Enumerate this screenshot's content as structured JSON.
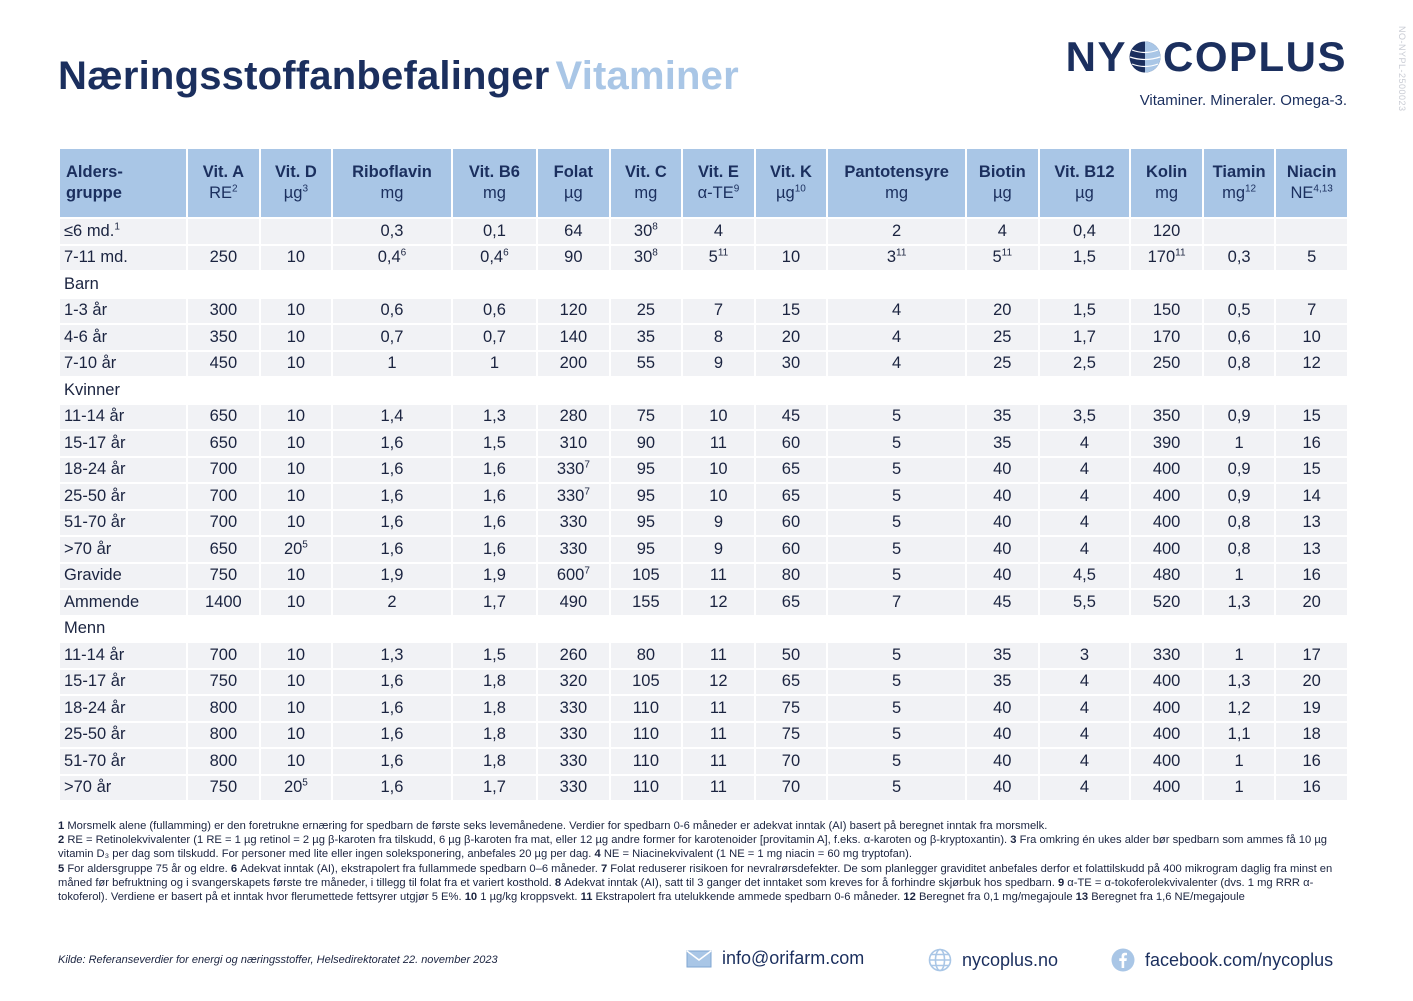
{
  "title": {
    "main": "Næringsstoffanbefalinger",
    "accent": "Vitaminer"
  },
  "brand": {
    "logo": "NYCOPLUS",
    "tagline": "Vitaminer. Mineraler. Omega-3.",
    "doc_id": "NO-NYPL-2500023"
  },
  "colors": {
    "navy": "#1b2f5e",
    "header_blue": "#a9c6e6",
    "row_grey": "#f1f2f5"
  },
  "table": {
    "columns": [
      {
        "name": "Alders-",
        "name2": "gruppe",
        "unit": ""
      },
      {
        "name": "Vit. A",
        "unit": "RE",
        "sup": "2"
      },
      {
        "name": "Vit. D",
        "unit": "µg",
        "sup": "3"
      },
      {
        "name": "Riboflavin",
        "unit": "mg",
        "sup": ""
      },
      {
        "name": "Vit. B6",
        "unit": "mg",
        "sup": ""
      },
      {
        "name": "Folat",
        "unit": "µg",
        "sup": ""
      },
      {
        "name": "Vit. C",
        "unit": "mg",
        "sup": ""
      },
      {
        "name": "Vit. E",
        "unit": "α-TE",
        "sup": "9"
      },
      {
        "name": "Vit. K",
        "unit": "µg",
        "sup": "10"
      },
      {
        "name": "Pantotensyre",
        "unit": "mg",
        "sup": ""
      },
      {
        "name": "Biotin",
        "unit": "µg",
        "sup": ""
      },
      {
        "name": "Vit. B12",
        "unit": "µg",
        "sup": ""
      },
      {
        "name": "Kolin",
        "unit": "mg",
        "sup": ""
      },
      {
        "name": "Tiamin",
        "unit": "mg",
        "sup": "12"
      },
      {
        "name": "Niacin",
        "unit": "NE",
        "sup": "4,13"
      }
    ],
    "rows": [
      {
        "label": "≤6 md.",
        "label_sup": "1",
        "cells": [
          "",
          "",
          "0,3",
          "0,1",
          "64",
          "30^8",
          "4",
          "",
          "2",
          "4",
          "0,4",
          "120",
          "",
          ""
        ]
      },
      {
        "label": "7-11 md.",
        "cells": [
          "250",
          "10",
          "0,4^6",
          "0,4^6",
          "90",
          "30^8",
          "5^11",
          "10",
          "3^11",
          "5^11",
          "1,5",
          "170^11",
          "0,3",
          "5"
        ]
      },
      {
        "group": "Barn"
      },
      {
        "label": "1-3 år",
        "cells": [
          "300",
          "10",
          "0,6",
          "0,6",
          "120",
          "25",
          "7",
          "15",
          "4",
          "20",
          "1,5",
          "150",
          "0,5",
          "7"
        ]
      },
      {
        "label": "4-6 år",
        "cells": [
          "350",
          "10",
          "0,7",
          "0,7",
          "140",
          "35",
          "8",
          "20",
          "4",
          "25",
          "1,7",
          "170",
          "0,6",
          "10"
        ]
      },
      {
        "label": "7-10 år",
        "cells": [
          "450",
          "10",
          "1",
          "1",
          "200",
          "55",
          "9",
          "30",
          "4",
          "25",
          "2,5",
          "250",
          "0,8",
          "12"
        ]
      },
      {
        "group": "Kvinner"
      },
      {
        "label": "11-14 år",
        "cells": [
          "650",
          "10",
          "1,4",
          "1,3",
          "280",
          "75",
          "10",
          "45",
          "5",
          "35",
          "3,5",
          "350",
          "0,9",
          "15"
        ]
      },
      {
        "label": "15-17 år",
        "cells": [
          "650",
          "10",
          "1,6",
          "1,5",
          "310",
          "90",
          "11",
          "60",
          "5",
          "35",
          "4",
          "390",
          "1",
          "16"
        ]
      },
      {
        "label": "18-24 år",
        "cells": [
          "700",
          "10",
          "1,6",
          "1,6",
          "330^7",
          "95",
          "10",
          "65",
          "5",
          "40",
          "4",
          "400",
          "0,9",
          "15"
        ]
      },
      {
        "label": "25-50 år",
        "cells": [
          "700",
          "10",
          "1,6",
          "1,6",
          "330^7",
          "95",
          "10",
          "65",
          "5",
          "40",
          "4",
          "400",
          "0,9",
          "14"
        ]
      },
      {
        "label": "51-70 år",
        "cells": [
          "700",
          "10",
          "1,6",
          "1,6",
          "330",
          "95",
          "9",
          "60",
          "5",
          "40",
          "4",
          "400",
          "0,8",
          "13"
        ]
      },
      {
        "label": ">70 år",
        "cells": [
          "650",
          "20^5",
          "1,6",
          "1,6",
          "330",
          "95",
          "9",
          "60",
          "5",
          "40",
          "4",
          "400",
          "0,8",
          "13"
        ]
      },
      {
        "label": "Gravide",
        "cells": [
          "750",
          "10",
          "1,9",
          "1,9",
          "600^7",
          "105",
          "11",
          "80",
          "5",
          "40",
          "4,5",
          "480",
          "1",
          "16"
        ]
      },
      {
        "label": "Ammende",
        "cells": [
          "1400",
          "10",
          "2",
          "1,7",
          "490",
          "155",
          "12",
          "65",
          "7",
          "45",
          "5,5",
          "520",
          "1,3",
          "20"
        ]
      },
      {
        "group": "Menn"
      },
      {
        "label": "11-14 år",
        "cells": [
          "700",
          "10",
          "1,3",
          "1,5",
          "260",
          "80",
          "11",
          "50",
          "5",
          "35",
          "3",
          "330",
          "1",
          "17"
        ]
      },
      {
        "label": "15-17 år",
        "cells": [
          "750",
          "10",
          "1,6",
          "1,8",
          "320",
          "105",
          "12",
          "65",
          "5",
          "35",
          "4",
          "400",
          "1,3",
          "20"
        ]
      },
      {
        "label": "18-24 år",
        "cells": [
          "800",
          "10",
          "1,6",
          "1,8",
          "330",
          "110",
          "11",
          "75",
          "5",
          "40",
          "4",
          "400",
          "1,2",
          "19"
        ]
      },
      {
        "label": "25-50 år",
        "cells": [
          "800",
          "10",
          "1,6",
          "1,8",
          "330",
          "110",
          "11",
          "75",
          "5",
          "40",
          "4",
          "400",
          "1,1",
          "18"
        ]
      },
      {
        "label": "51-70 år",
        "cells": [
          "800",
          "10",
          "1,6",
          "1,8",
          "330",
          "110",
          "11",
          "70",
          "5",
          "40",
          "4",
          "400",
          "1",
          "16"
        ]
      },
      {
        "label": ">70 år",
        "cells": [
          "750",
          "20^5",
          "1,6",
          "1,7",
          "330",
          "110",
          "11",
          "70",
          "5",
          "40",
          "4",
          "400",
          "1",
          "16"
        ]
      }
    ]
  },
  "notes": [
    {
      "n": "1",
      "text": "Morsmelk alene (fullamming) er den foretrukne ernæring for spedbarn de første seks levemånedene. Verdier for spedbarn 0-6 måneder er adekvat inntak (AI) basert på beregnet inntak fra morsmelk."
    },
    {
      "n": "2",
      "text": "RE = Retinolekvivalenter (1 RE = 1 µg retinol = 2 µg β-karoten fra tilskudd, 6 µg β-karoten fra mat, eller 12 µg andre former for karotenoider [provitamin A], f.eks. α-karoten og β-kryptoxantin)."
    },
    {
      "n": "3",
      "text": "Fra omkring én ukes alder bør spedbarn som ammes få 10 µg vitamin D₃ per dag som tilskudd. For personer med lite eller ingen soleksponering, anbefales 20 µg per dag."
    },
    {
      "n": "4",
      "text": "NE = Niacinekvivalent (1 NE = 1 mg niacin = 60 mg tryptofan)."
    },
    {
      "n": "5",
      "text": "For aldersgruppe 75 år og eldre."
    },
    {
      "n": "6",
      "text": "Adekvat inntak (AI), ekstrapolert fra fullammede spedbarn 0–6 måneder."
    },
    {
      "n": "7",
      "text": "Folat reduserer risikoen for nevralrørsdefekter. De som planlegger graviditet anbefales derfor et folattilskudd på 400 mikrogram daglig fra minst en måned før befruktning og i svangerskapets første tre måneder, i tillegg til folat fra et variert kosthold."
    },
    {
      "n": "8",
      "text": "Adekvat inntak (AI), satt til 3 ganger det inntaket som kreves for å forhindre skjørbuk hos spedbarn."
    },
    {
      "n": "9",
      "text": "α-TE = α-tokoferolekvivalenter (dvs. 1 mg RRR α-tokoferol). Verdiene er basert på et inntak hvor flerumettede fettsyrer utgjør 5 E%."
    },
    {
      "n": "10",
      "text": "1 µg/kg kroppsvekt."
    },
    {
      "n": "11",
      "text": "Ekstrapolert fra utelukkende ammede spedbarn 0-6 måneder."
    },
    {
      "n": "12",
      "text": "Beregnet fra 0,1 mg/megajoule"
    },
    {
      "n": "13",
      "text": "Beregnet fra 1,6 NE/megajoule"
    }
  ],
  "source": "Kilde: Referanseverdier for energi og næringsstoffer, Helsedirektoratet 22. november 2023",
  "contact": {
    "email": "info@orifarm.com",
    "web": "nycoplus.no",
    "facebook": "facebook.com/nycoplus"
  }
}
